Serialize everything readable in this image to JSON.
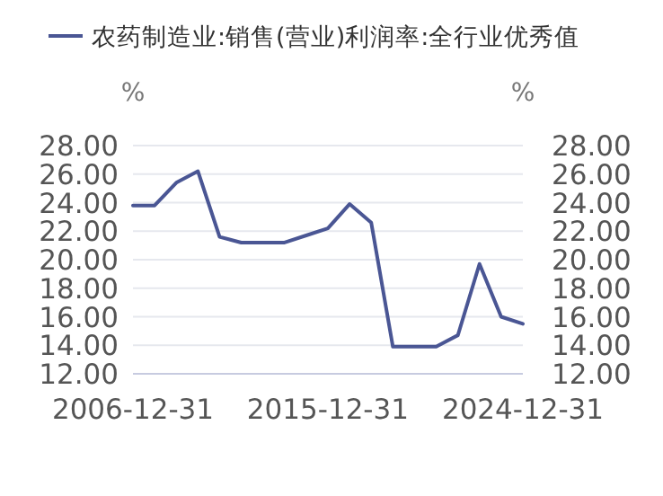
{
  "chart_data": {
    "type": "line",
    "ylabel": "%",
    "y2label": "%",
    "legend": "top left",
    "grid": "y",
    "x": [
      "2006-12-31",
      "2007-12-31",
      "2008-12-31",
      "2009-12-31",
      "2010-12-31",
      "2011-12-31",
      "2012-12-31",
      "2013-12-31",
      "2014-12-31",
      "2015-12-31",
      "2016-12-31",
      "2017-12-31",
      "2018-12-31",
      "2019-12-31",
      "2020-12-31",
      "2021-12-31",
      "2022-12-31",
      "2023-12-31",
      "2024-12-31"
    ],
    "series": [
      {
        "name": "农药制造业:销售(营业)利润率:全行业优秀值",
        "color": "#4a5694",
        "values": [
          23.8,
          23.8,
          25.4,
          26.2,
          21.6,
          21.2,
          21.2,
          21.2,
          21.7,
          22.2,
          23.9,
          22.6,
          13.9,
          13.9,
          13.9,
          14.7,
          19.7,
          16.0,
          15.5
        ]
      }
    ],
    "xlim": [
      "2006-12-31",
      "2024-12-31"
    ],
    "xticks": [
      {
        "value": "2006-12-31",
        "label": "2006-12-31"
      },
      {
        "value": "2015-12-31",
        "label": "2015-12-31"
      },
      {
        "value": "2024-12-31",
        "label": "2024-12-31"
      }
    ],
    "ylim": [
      12,
      28
    ],
    "yticks": [
      {
        "value": 12,
        "label": "12.00"
      },
      {
        "value": 14,
        "label": "14.00"
      },
      {
        "value": 16,
        "label": "16.00"
      },
      {
        "value": 18,
        "label": "18.00"
      },
      {
        "value": 20,
        "label": "20.00"
      },
      {
        "value": 22,
        "label": "22.00"
      },
      {
        "value": 24,
        "label": "24.00"
      },
      {
        "value": 26,
        "label": "26.00"
      },
      {
        "value": 28,
        "label": "28.00"
      }
    ],
    "y2lim": [
      12,
      28
    ],
    "y2ticks": [
      {
        "value": 12,
        "label": "12.00"
      },
      {
        "value": 14,
        "label": "14.00"
      },
      {
        "value": 16,
        "label": "16.00"
      },
      {
        "value": 18,
        "label": "18.00"
      },
      {
        "value": 20,
        "label": "20.00"
      },
      {
        "value": 22,
        "label": "22.00"
      },
      {
        "value": 24,
        "label": "24.00"
      },
      {
        "value": 26,
        "label": "26.00"
      },
      {
        "value": 28,
        "label": "28.00"
      }
    ]
  }
}
